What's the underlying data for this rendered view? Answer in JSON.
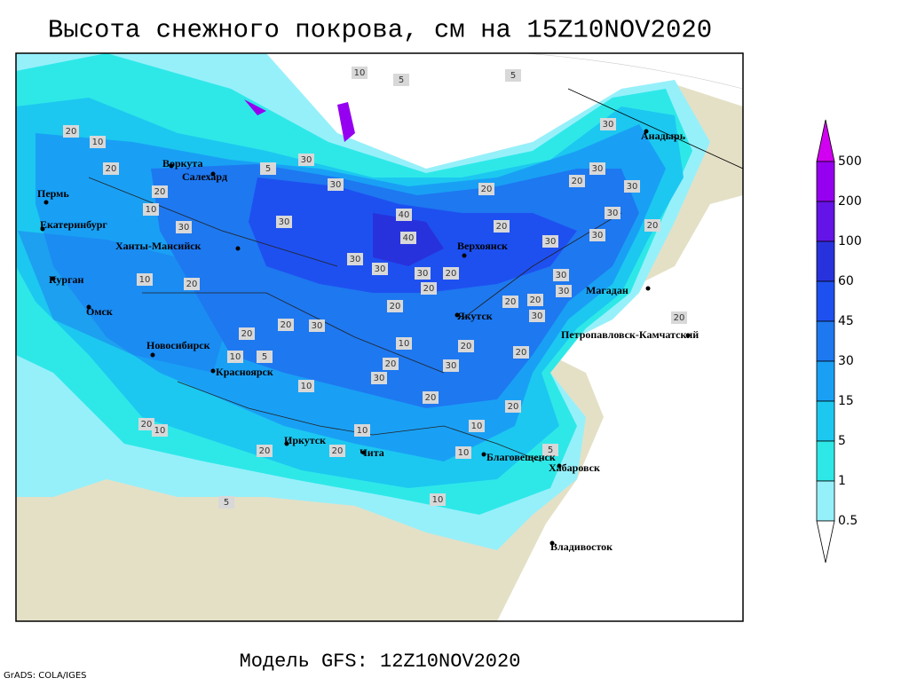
{
  "header": {
    "title": "Высота снежного покрова, см на 15Z10NOV2020"
  },
  "footer": {
    "model": "Модель GFS: 12Z10NOV2020",
    "credit": "GrADS: COLA/IGES"
  },
  "legend": {
    "levels": [
      500,
      200,
      100,
      60,
      45,
      30,
      15,
      5,
      1,
      0.5
    ],
    "colors": [
      "#d200f0",
      "#9600f0",
      "#6414e6",
      "#2832dc",
      "#1e50f0",
      "#1e78f0",
      "#19a0f5",
      "#1cc8f0",
      "#2ee8e8",
      "#96f0fa",
      "#ffffff"
    ]
  },
  "cities": [
    "Воркута",
    "Салехард",
    "Пермь",
    "Екатеринбург",
    "Ханты-Мансийск",
    "Курган",
    "Омск",
    "Новосибирск",
    "Красноярск",
    "Иркутск",
    "Чита",
    "Благовещенск",
    "Хабаровск",
    "Владивосток",
    "Якутск",
    "Верхоянск",
    "Магадан",
    "Петропавловск-Камчатский",
    "Анадырь"
  ],
  "contour_labels": [
    10,
    5,
    5,
    30,
    10,
    20,
    20,
    20,
    10,
    30,
    5,
    30,
    30,
    30,
    40,
    40,
    30,
    30,
    30,
    20,
    20,
    20,
    20,
    30,
    30,
    20,
    30,
    30,
    30,
    20,
    30,
    30,
    20,
    30,
    20,
    20,
    20,
    30,
    20,
    20,
    10,
    10,
    5,
    10,
    10,
    20,
    30,
    20,
    30,
    20,
    20,
    20,
    10,
    10,
    20,
    20,
    5,
    10,
    10,
    5,
    20,
    10,
    20
  ]
}
